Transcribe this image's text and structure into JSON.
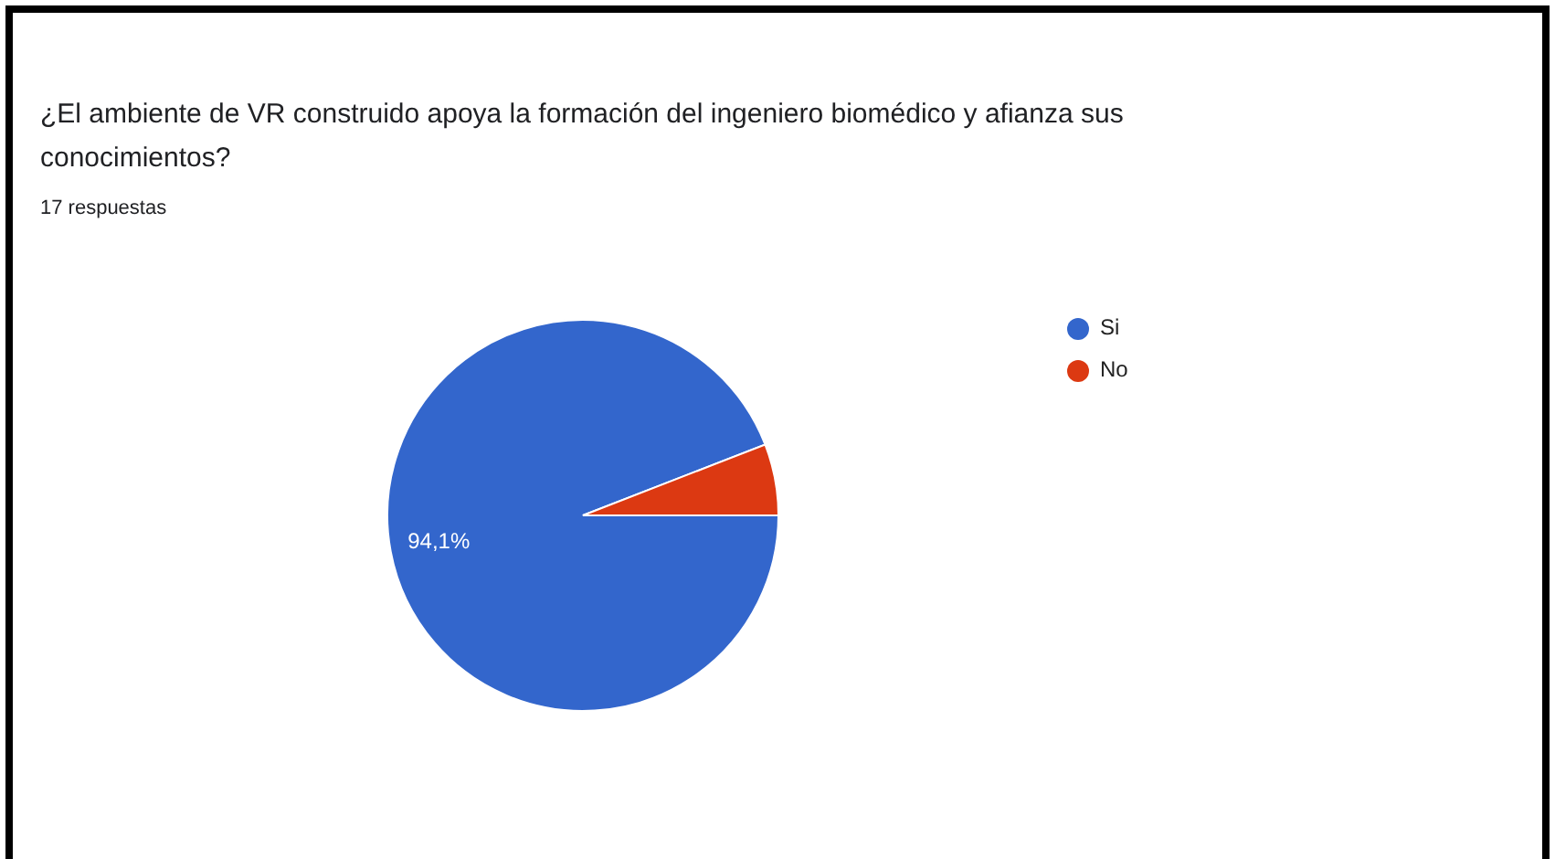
{
  "chart_data": {
    "type": "pie",
    "title": "¿El ambiente de VR construido apoya la formación del ingeniero biomédico y afianza sus conocimientos?",
    "subtitle": "17 respuestas",
    "categories": [
      "Si",
      "No"
    ],
    "values": [
      94.1,
      5.9
    ],
    "colors": [
      "#3366cc",
      "#dc3912"
    ],
    "value_labels": [
      "94,1%",
      null
    ],
    "legend": "top right"
  }
}
